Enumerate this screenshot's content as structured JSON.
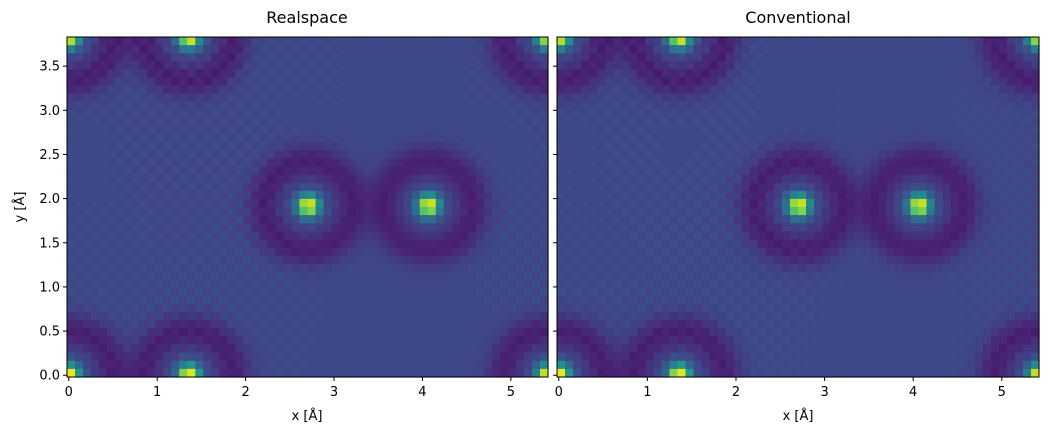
{
  "chart_data": [
    {
      "type": "heatmap",
      "title": "Realspace",
      "xlabel": "x [Å]",
      "ylabel": "y [Å]",
      "xlim": [
        -0.02,
        5.42
      ],
      "ylim": [
        -0.02,
        3.83
      ],
      "xticks": [
        0,
        1,
        2,
        3,
        4,
        5
      ],
      "yticks": [
        0.0,
        0.5,
        1.0,
        1.5,
        2.0,
        2.5,
        3.0,
        3.5
      ],
      "colormap": "viridis",
      "peaks": [
        {
          "x": 2.71,
          "y": 1.92,
          "amp": 1.0
        },
        {
          "x": 4.07,
          "y": 1.92,
          "amp": 1.0
        },
        {
          "x": 1.36,
          "y": 0.0,
          "amp": 1.0
        },
        {
          "x": 1.36,
          "y": 3.83,
          "amp": 1.0
        },
        {
          "x": 0.0,
          "y": 0.0,
          "amp": 1.0
        },
        {
          "x": 0.0,
          "y": 3.83,
          "amp": 1.0
        },
        {
          "x": 5.42,
          "y": 0.0,
          "amp": 1.0
        },
        {
          "x": 5.42,
          "y": 3.83,
          "amp": 1.0
        }
      ]
    },
    {
      "type": "heatmap",
      "title": "Conventional",
      "xlabel": "x [Å]",
      "ylabel": "",
      "xlim": [
        -0.02,
        5.42
      ],
      "ylim": [
        -0.02,
        3.83
      ],
      "xticks": [
        0,
        1,
        2,
        3,
        4,
        5
      ],
      "yticks": [
        0.0,
        0.5,
        1.0,
        1.5,
        2.0,
        2.5,
        3.0,
        3.5
      ],
      "colormap": "viridis",
      "peaks": [
        {
          "x": 2.71,
          "y": 1.92,
          "amp": 1.0
        },
        {
          "x": 4.07,
          "y": 1.92,
          "amp": 1.0
        },
        {
          "x": 1.36,
          "y": 0.0,
          "amp": 1.0
        },
        {
          "x": 1.36,
          "y": 3.83,
          "amp": 1.0
        },
        {
          "x": 0.0,
          "y": 0.0,
          "amp": 1.0
        },
        {
          "x": 0.0,
          "y": 3.83,
          "amp": 1.0
        },
        {
          "x": 5.42,
          "y": 0.0,
          "amp": 1.0
        },
        {
          "x": 5.42,
          "y": 3.83,
          "amp": 1.0
        }
      ]
    }
  ]
}
